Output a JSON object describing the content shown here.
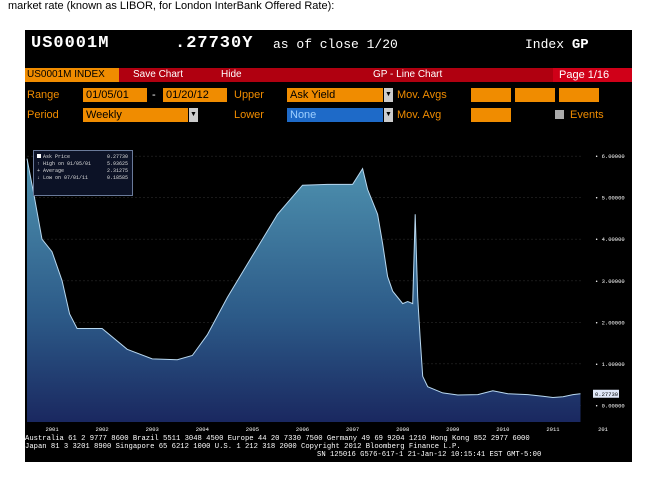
{
  "caption": "market rate (known as LIBOR, for London InterBank Offered Rate):",
  "header": {
    "ticker": "US0001M",
    "price": ".27730Y",
    "as_of": "as of close  1/20",
    "index_label": "Index",
    "index_code": "GP"
  },
  "menu": {
    "index_tab": "US0001M INDEX",
    "save_chart": "Save Chart",
    "hide": "Hide",
    "chart_title": "GP - Line Chart",
    "page": "Page 1/16"
  },
  "controls": {
    "range_label": "Range",
    "range_start": "01/05/01",
    "range_sep": "-",
    "range_end": "01/20/12",
    "upper_label": "Upper",
    "upper_value": "Ask Yield",
    "mov_avgs_label": "Mov. Avgs",
    "period_label": "Period",
    "period_value": "Weekly",
    "lower_label": "Lower",
    "lower_value": "None",
    "mov_avg_label": "Mov. Avg",
    "events_label": "Events"
  },
  "legend": {
    "ask_price_label": "Ask Price",
    "ask_price_value": "0.27730",
    "high_label": "High on 01/05/01",
    "high_value": "5.93625",
    "average_label": "Average",
    "average_value": "2.31275",
    "low_label": "Low on 07/01/11",
    "low_value": "0.18585"
  },
  "footer": {
    "line1": "Australia 61 2 9777 8600 Brazil 5511 3048 4500 Europe 44 20 7330 7500 Germany 49 69 9204 1210 Hong Kong 852 2977 6000",
    "line2": "Japan 81 3 3201 8900      Singapore 65 6212 1000      U.S. 1 212 318 2000          Copyright 2012 Bloomberg Finance L.P.",
    "line3": "SN 125016 G576-617-1 21-Jan-12 10:15:41 EST  GMT-5:00"
  },
  "colors": {
    "background": "#000000",
    "menu_bar": "#b00010",
    "orange": "#f08c00",
    "area_top": "#4a8aa8",
    "area_bottom": "#1a2a5a"
  },
  "chart_data": {
    "type": "area",
    "series": [
      {
        "x": [
          2001.0,
          2001.15,
          2001.3,
          2001.5,
          2001.7,
          2001.85,
          2002.0,
          2002.5,
          2003.0,
          2003.5,
          2004.0,
          2004.3,
          2004.6,
          2005.0,
          2005.5,
          2006.0,
          2006.5,
          2007.0,
          2007.5,
          2007.7,
          2007.8,
          2007.9,
          2008.0,
          2008.1,
          2008.2,
          2008.3,
          2008.5,
          2008.6,
          2008.7,
          2008.75,
          2008.8,
          2008.85,
          2008.9,
          2009.0,
          2009.3,
          2009.6,
          2010.0,
          2010.3,
          2010.6,
          2011.0,
          2011.3,
          2011.5,
          2011.7,
          2011.9,
          2012.05
        ],
        "values": [
          5.94,
          5.0,
          4.0,
          3.7,
          3.0,
          2.2,
          1.85,
          1.85,
          1.35,
          1.12,
          1.1,
          1.2,
          1.7,
          2.6,
          3.6,
          4.6,
          5.3,
          5.32,
          5.32,
          5.7,
          5.2,
          4.9,
          4.6,
          3.9,
          3.1,
          2.75,
          2.45,
          2.5,
          2.45,
          4.6,
          2.6,
          1.6,
          0.7,
          0.45,
          0.3,
          0.25,
          0.26,
          0.35,
          0.28,
          0.26,
          0.22,
          0.19,
          0.21,
          0.26,
          0.28
        ]
      }
    ],
    "x_tick_labels": [
      "2001",
      "2002",
      "2003",
      "2004",
      "2005",
      "2006",
      "2007",
      "2008",
      "2009",
      "2010",
      "2011",
      "201"
    ],
    "y_tick_labels": [
      "6.00000",
      "5.00000",
      "4.00000",
      "3.00000",
      "2.00000",
      "1.00000",
      "0.00000"
    ],
    "ylim": [
      -0.4,
      6.1
    ],
    "last_value_label": "0.27730"
  }
}
